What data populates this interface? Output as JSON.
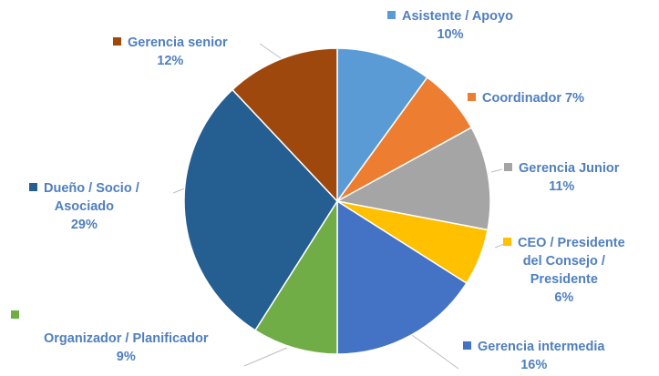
{
  "chart_data": {
    "type": "pie",
    "start_angle_deg": 0,
    "direction": "clockwise",
    "slices": [
      {
        "label_lines": [
          "Asistente / Apoyo",
          "10%"
        ],
        "value": 10,
        "percent_text": "10%",
        "color": "#5b9bd5"
      },
      {
        "label_lines": [
          "Coordinador 7%"
        ],
        "value": 7,
        "percent_text": "7%",
        "color": "#ed7d31"
      },
      {
        "label_lines": [
          "Gerencia Junior",
          "11%"
        ],
        "value": 11,
        "percent_text": "11%",
        "color": "#a5a5a5"
      },
      {
        "label_lines": [
          "CEO / Presidente",
          "del Consejo /",
          "Presidente",
          "6%"
        ],
        "value": 6,
        "percent_text": "6%",
        "color": "#ffc000"
      },
      {
        "label_lines": [
          "Gerencia intermedia",
          "16%"
        ],
        "value": 16,
        "percent_text": "16%",
        "color": "#4472c4"
      },
      {
        "label_lines": [
          "Organizador / Planificador",
          "9%"
        ],
        "value": 9,
        "percent_text": "9%",
        "color": "#70ad47"
      },
      {
        "label_lines": [
          "Dueño / Socio /",
          "Asociado",
          "29%"
        ],
        "value": 29,
        "percent_text": "29%",
        "color": "#255e91"
      },
      {
        "label_lines": [
          "Gerencia senior",
          "12%"
        ],
        "value": 12,
        "percent_text": "12%",
        "color": "#9e480e"
      }
    ]
  }
}
